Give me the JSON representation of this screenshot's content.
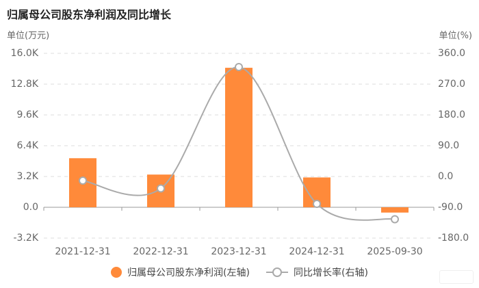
{
  "header": {
    "title": "归属母公司股东净利润及同比增长",
    "left_unit": "单位(万元)",
    "right_unit": "单位(%)"
  },
  "legend": {
    "bar_label": "归属母公司股东净利润(左轴)",
    "line_label": "同比增长率(右轴)"
  },
  "colors": {
    "bar": "#ff8a3a",
    "line": "#aaaaaa",
    "grid": "#dddddd",
    "axis": "#999999"
  },
  "chart_data": {
    "type": "bar",
    "categories": [
      "2021-12-31",
      "2022-12-31",
      "2023-12-31",
      "2024-12-31",
      "2025-09-30"
    ],
    "y_left_ticks": [
      "16.0K",
      "12.8K",
      "9.6K",
      "6.4K",
      "3.2K",
      "0.0",
      "-3.2K"
    ],
    "y_right_ticks": [
      "360.0",
      "270.0",
      "180.0",
      "90.0",
      "0.0",
      "-90.0",
      "-180.0"
    ],
    "ylim_left": [
      -3200,
      16000
    ],
    "ylim_right": [
      -180,
      360
    ],
    "grid": true,
    "legend_position": "bottom",
    "series": [
      {
        "name": "归属母公司股东净利润(左轴)",
        "type": "bar",
        "axis": "left",
        "values": [
          5100,
          3400,
          14500,
          3100,
          -550
        ]
      },
      {
        "name": "同比增长率(右轴)",
        "type": "line",
        "axis": "right",
        "values": [
          -12,
          -35,
          320,
          -80,
          -125
        ]
      }
    ]
  }
}
